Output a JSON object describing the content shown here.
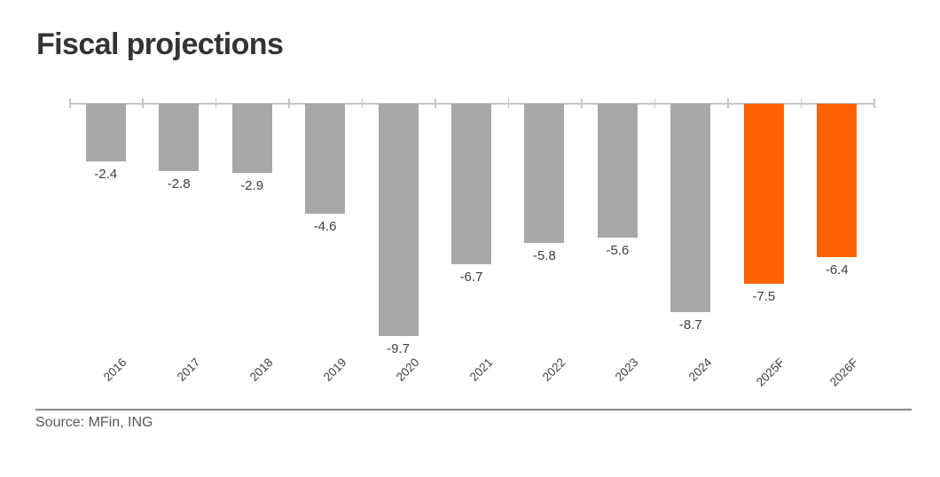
{
  "title": "Fiscal projections",
  "source": "Source: MFin, ING",
  "colors": {
    "historical_bar": "#a8a8a8",
    "forecast_bar": "#ff6200",
    "axis": "#c6c6c6",
    "label": "#404040",
    "title": "#333333",
    "source_text": "#595959",
    "divider": "#8a8a8a"
  },
  "chart_data": {
    "type": "bar",
    "title": "Fiscal projections",
    "categories": [
      "2016",
      "2017",
      "2018",
      "2019",
      "2020",
      "2021",
      "2022",
      "2023",
      "2024",
      "2025F",
      "2026F"
    ],
    "values": [
      -2.4,
      -2.8,
      -2.9,
      -4.6,
      -9.7,
      -6.7,
      -5.8,
      -5.6,
      -8.7,
      -7.5,
      -6.4
    ],
    "data_labels": [
      "-2.4",
      "-2.8",
      "-2.9",
      "-4.6",
      "-9.7",
      "-6.7",
      "-5.8",
      "-5.6",
      "-8.7",
      "-7.5",
      "-6.4"
    ],
    "forecast": [
      false,
      false,
      false,
      false,
      false,
      false,
      false,
      false,
      false,
      true,
      true
    ],
    "xlabel": "",
    "ylabel": "",
    "ylim": [
      -10,
      0
    ],
    "baseline": 0,
    "grid": false,
    "legend": null,
    "data_label_position": "outside-end",
    "x_label_rotation_deg": 45
  }
}
